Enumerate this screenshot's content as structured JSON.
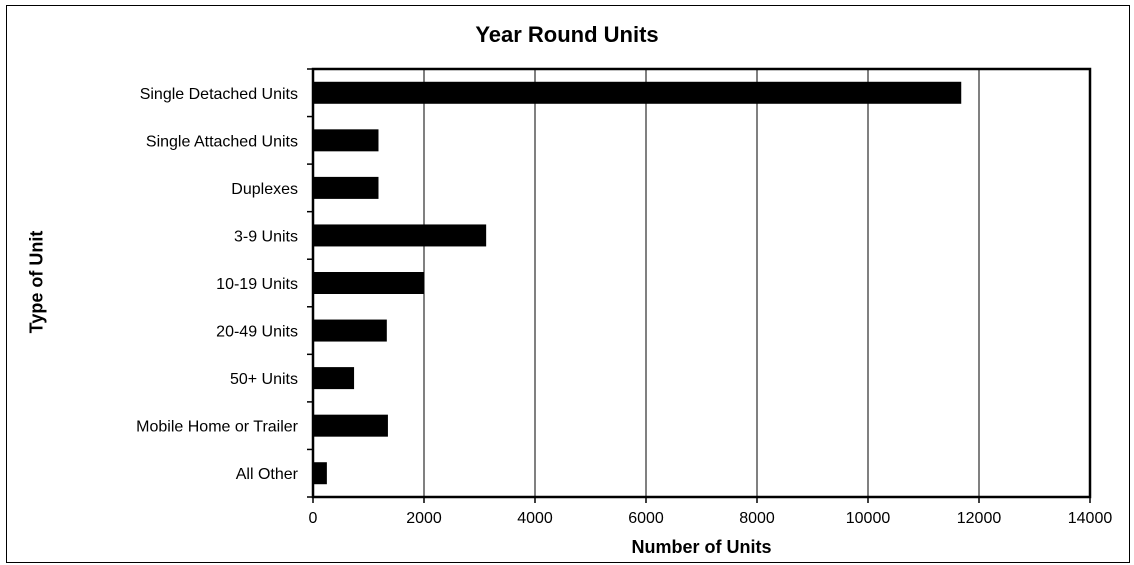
{
  "chart_data": {
    "type": "bar",
    "orientation": "horizontal",
    "title": "Year Round Units",
    "xlabel": "Number of Units",
    "ylabel": "Type of Unit",
    "categories": [
      "Single Detached Units",
      "Single Attached Units",
      "Duplexes",
      "3-9 Units",
      "10-19 Units",
      "20-49 Units",
      "50+ Units",
      "Mobile Home or Trailer",
      "All Other"
    ],
    "values": [
      11680,
      1180,
      1180,
      3120,
      2000,
      1330,
      740,
      1350,
      250
    ],
    "xlim": [
      0,
      14000
    ],
    "xticks": [
      0,
      2000,
      4000,
      6000,
      8000,
      10000,
      12000,
      14000
    ],
    "grid": "vertical",
    "bar_color": "#000000",
    "legend": "none"
  }
}
